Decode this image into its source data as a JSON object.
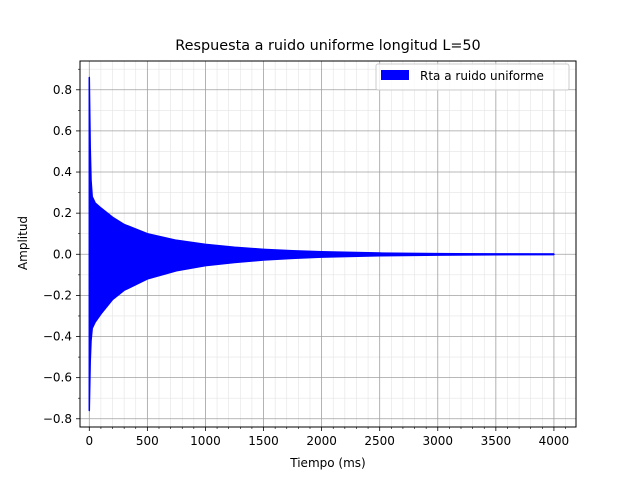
{
  "chart_data": {
    "type": "area",
    "title": "Respuesta a ruido uniforme longitud L=50",
    "xlabel": "Tiempo (ms)",
    "ylabel": "Amplitud",
    "xlim": [
      -80,
      4190
    ],
    "ylim": [
      -0.84,
      0.94
    ],
    "xticks": [
      0,
      500,
      1000,
      1500,
      2000,
      2500,
      3000,
      3500,
      4000
    ],
    "xtick_labels": [
      "0",
      "500",
      "1000",
      "1500",
      "2000",
      "2500",
      "3000",
      "3500",
      "4000"
    ],
    "yticks": [
      -0.8,
      -0.6,
      -0.4,
      -0.2,
      0.0,
      0.2,
      0.4,
      0.6,
      0.8
    ],
    "ytick_labels": [
      "−0.8",
      "−0.6",
      "−0.4",
      "−0.2",
      "0.0",
      "0.2",
      "0.4",
      "0.6",
      "0.8"
    ],
    "grid": true,
    "minor_grid": true,
    "legend": {
      "position": "top-right",
      "entries": [
        {
          "label": "Rta a ruido uniforme",
          "color": "#0000ff"
        }
      ]
    },
    "series": [
      {
        "name": "Rta a ruido uniforme",
        "color": "#0000ff",
        "upper": [
          [
            0,
            0.86
          ],
          [
            8,
            0.52
          ],
          [
            15,
            0.36
          ],
          [
            25,
            0.28
          ],
          [
            50,
            0.25
          ],
          [
            100,
            0.225
          ],
          [
            200,
            0.18
          ],
          [
            300,
            0.145
          ],
          [
            500,
            0.1
          ],
          [
            750,
            0.068
          ],
          [
            1000,
            0.048
          ],
          [
            1250,
            0.034
          ],
          [
            1500,
            0.024
          ],
          [
            1750,
            0.017
          ],
          [
            2000,
            0.012
          ],
          [
            2500,
            0.006
          ],
          [
            3000,
            0.003
          ],
          [
            3500,
            0.0015
          ],
          [
            4000,
            0.001
          ]
        ],
        "lower": [
          [
            0,
            -0.76
          ],
          [
            8,
            -0.52
          ],
          [
            15,
            -0.42
          ],
          [
            25,
            -0.36
          ],
          [
            50,
            -0.33
          ],
          [
            100,
            -0.29
          ],
          [
            200,
            -0.22
          ],
          [
            300,
            -0.175
          ],
          [
            500,
            -0.12
          ],
          [
            750,
            -0.08
          ],
          [
            1000,
            -0.055
          ],
          [
            1250,
            -0.04
          ],
          [
            1500,
            -0.028
          ],
          [
            1750,
            -0.02
          ],
          [
            2000,
            -0.014
          ],
          [
            2500,
            -0.007
          ],
          [
            3000,
            -0.004
          ],
          [
            3500,
            -0.002
          ],
          [
            4000,
            -0.001
          ]
        ]
      }
    ]
  }
}
